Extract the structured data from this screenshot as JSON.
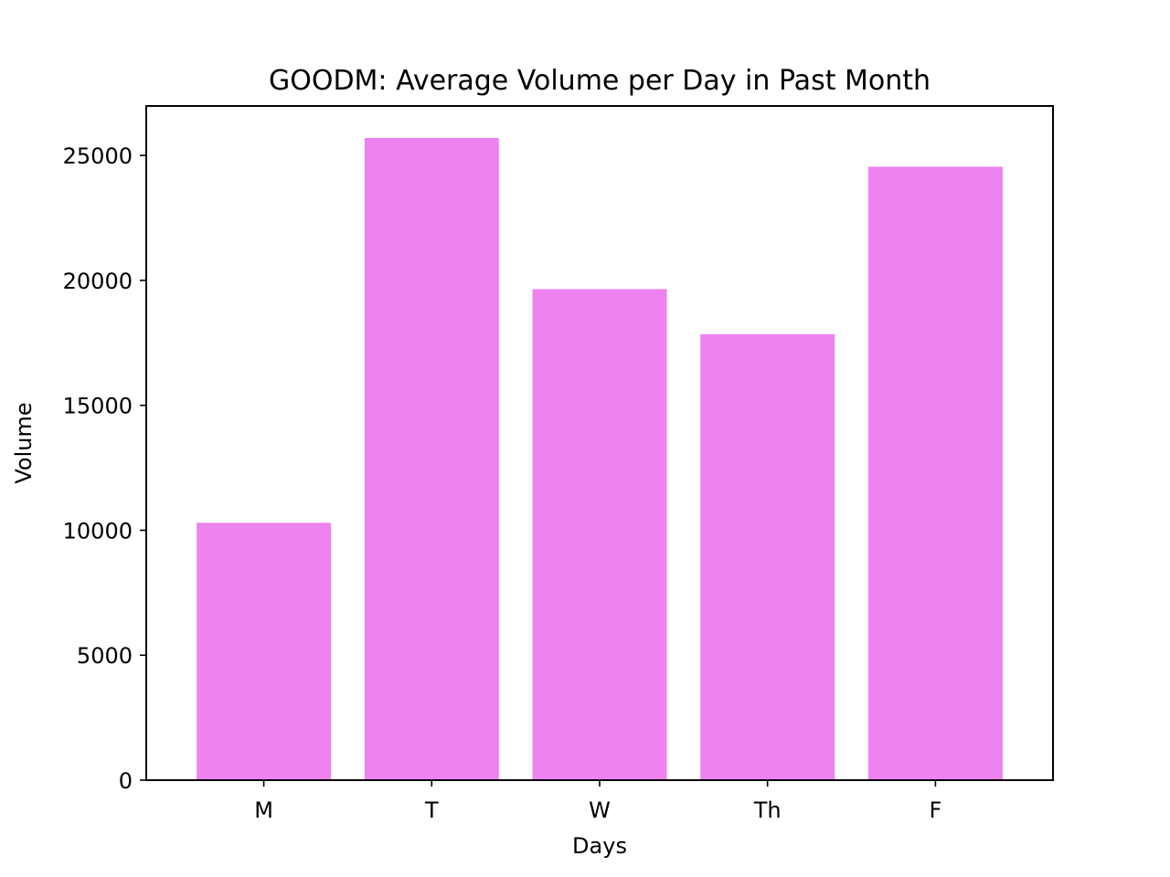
{
  "chart_data": {
    "type": "bar",
    "title": "GOODM: Average Volume per Day in Past Month",
    "xlabel": "Days",
    "ylabel": "Volume",
    "categories": [
      "M",
      "T",
      "W",
      "Th",
      "F"
    ],
    "values": [
      10300,
      25700,
      19650,
      17850,
      24550
    ],
    "ylim": [
      0,
      26980
    ],
    "yticks": [
      0,
      5000,
      10000,
      15000,
      20000,
      25000
    ],
    "ytick_labels": [
      "0",
      "5000",
      "10000",
      "15000",
      "20000",
      "25000"
    ],
    "bar_color": "#EE82EE",
    "grid": false,
    "legend": "none"
  }
}
